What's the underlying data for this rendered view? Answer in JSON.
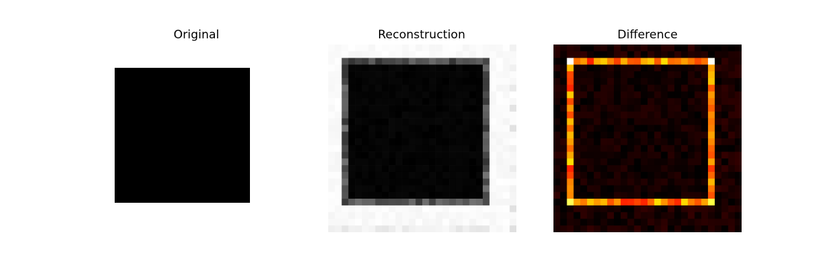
{
  "titles": {
    "original": "Original",
    "reconstruction": "Reconstruction",
    "difference": "Difference"
  },
  "colors": {
    "background": "#ffffff",
    "square": "#000000",
    "hot_low": "#000000",
    "hot_mid": "#e00000",
    "hot_high": "#ffff00",
    "hot_max": "#ffffff"
  },
  "images": {
    "grid_size": 28,
    "original": "black square on white background",
    "reconstruction_colormap": "gray",
    "difference_colormap": "hot"
  }
}
